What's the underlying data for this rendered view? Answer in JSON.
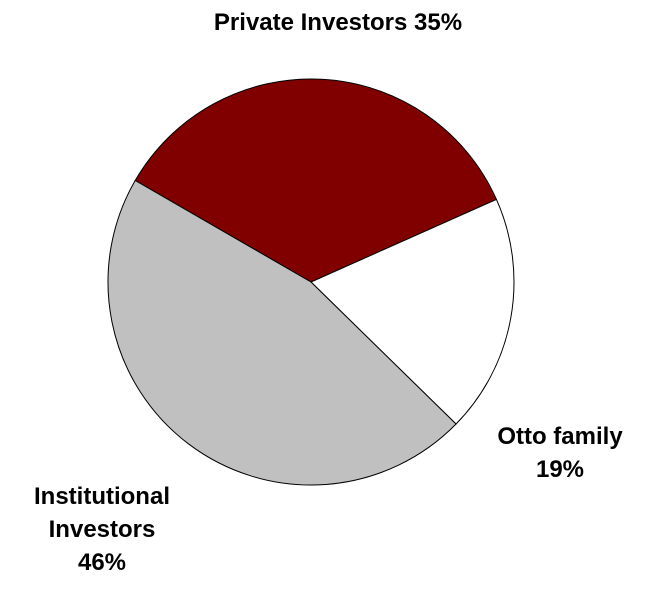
{
  "chart_data": {
    "type": "pie",
    "categories": [
      "Private Investors",
      "Otto family",
      "Institutional Investors"
    ],
    "values": [
      35,
      19,
      46
    ],
    "value_labels": [
      "35%",
      "19%",
      "46%"
    ],
    "colors": [
      "#800000",
      "#ffffff",
      "#c0c0c0"
    ]
  }
}
